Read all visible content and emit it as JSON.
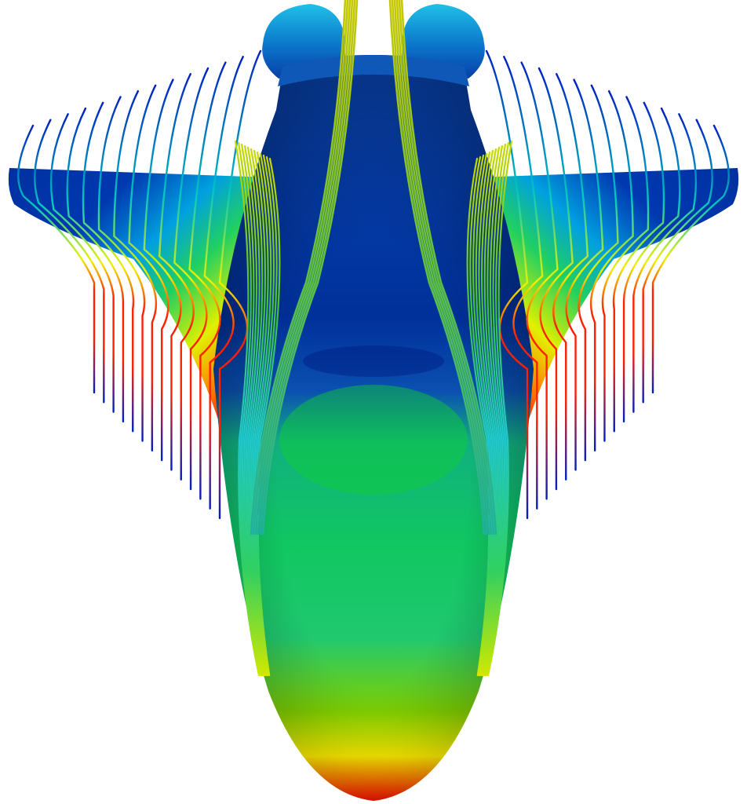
{
  "view": {
    "background": "#ffffff",
    "subject": "spacecraft-surface-with-streamlines"
  },
  "colormap": {
    "name": "rainbow",
    "stops": [
      "#0000a0",
      "#0033d0",
      "#00a0e0",
      "#00d0c0",
      "#00d040",
      "#c0f000",
      "#ffff00",
      "#ff8000",
      "#ff0000"
    ]
  },
  "streamline_groups": [
    {
      "id": "left-wing-tip-lines",
      "color_range": "blue-to-red"
    },
    {
      "id": "right-wing-tip-lines",
      "color_range": "blue-to-red"
    },
    {
      "id": "left-body-vortex-lines",
      "color_range": "green-yellow"
    },
    {
      "id": "right-body-vortex-lines",
      "color_range": "green-yellow"
    },
    {
      "id": "center-top-lines",
      "color_range": "yellow-green"
    }
  ]
}
